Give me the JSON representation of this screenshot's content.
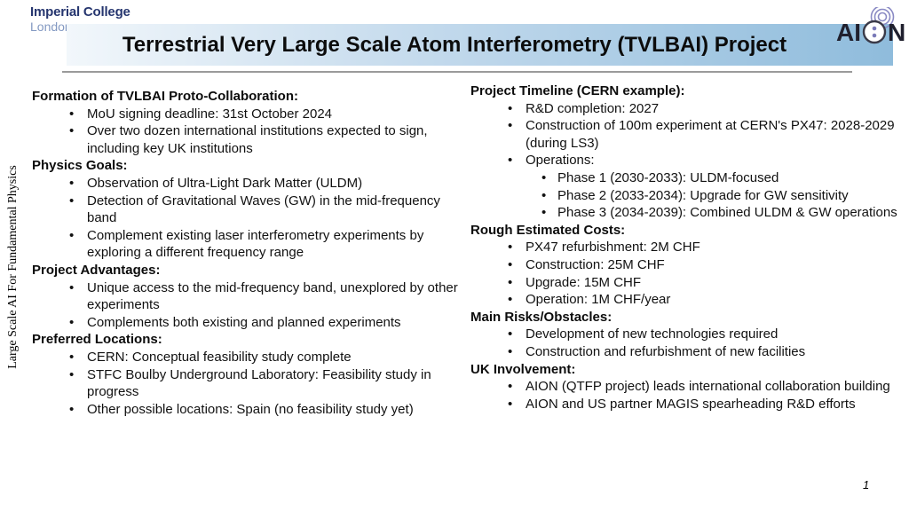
{
  "slide": {
    "title": "Terrestrial Very Large Scale Atom Interferometry (TVLBAI) Project",
    "side_label": "Large Scale AI For Fundamental Physics",
    "page_number": "1"
  },
  "logos": {
    "imperial": {
      "line1": "Imperial College",
      "line2": "London"
    },
    "aion": {
      "text_before": "AI",
      "text_after": "N"
    }
  },
  "colors": {
    "title_band_start": "#f2f7fb",
    "title_band_end": "#8fbcdc",
    "imperial_navy": "#26366f",
    "imperial_light_blue": "#8399c2",
    "aion_purple": "#8a8ac4",
    "separator_gray": "#9a9a9a",
    "body_text": "#111111"
  },
  "columns": {
    "left": {
      "sections": [
        {
          "heading": "Formation of TVLBAI Proto-Collaboration:",
          "items": [
            {
              "level": 1,
              "text": "MoU signing deadline: 31st October 2024"
            },
            {
              "level": 1,
              "text": "Over two dozen international institutions expected to sign, including key UK institutions"
            }
          ]
        },
        {
          "heading": "Physics Goals:",
          "items": [
            {
              "level": 1,
              "text": "Observation of Ultra-Light Dark Matter (ULDM)"
            },
            {
              "level": 1,
              "text": "Detection of Gravitational Waves (GW) in the mid-frequency band"
            },
            {
              "level": 1,
              "text": "Complement existing laser interferometry experiments by exploring a different frequency range"
            }
          ]
        },
        {
          "heading": "Project Advantages:",
          "items": [
            {
              "level": 1,
              "text": "Unique access to the mid-frequency band, unexplored by other experiments"
            },
            {
              "level": 1,
              "text": "Complements both existing and planned experiments"
            }
          ]
        },
        {
          "heading": "Preferred Locations:",
          "items": [
            {
              "level": 1,
              "text": "CERN: Conceptual feasibility study complete"
            },
            {
              "level": 1,
              "text": "STFC Boulby Underground Laboratory: Feasibility study in progress"
            },
            {
              "level": 1,
              "text": "Other possible locations: Spain (no feasibility study yet)"
            }
          ]
        }
      ]
    },
    "right": {
      "sections": [
        {
          "heading": "Project Timeline (CERN example):",
          "items": [
            {
              "level": 1,
              "text": "R&D completion: 2027"
            },
            {
              "level": 1,
              "text": "Construction of 100m experiment at CERN's PX47: 2028-2029 (during LS3)"
            },
            {
              "level": 1,
              "text": "Operations:"
            },
            {
              "level": 2,
              "text": "Phase 1 (2030-2033): ULDM-focused"
            },
            {
              "level": 2,
              "text": "Phase 2 (2033-2034): Upgrade for GW sensitivity"
            },
            {
              "level": 2,
              "text": "Phase 3 (2034-2039): Combined ULDM & GW operations"
            }
          ]
        },
        {
          "heading": "Rough Estimated Costs:",
          "items": [
            {
              "level": 1,
              "text": "PX47 refurbishment: 2M CHF"
            },
            {
              "level": 1,
              "text": "Construction: 25M CHF"
            },
            {
              "level": 1,
              "text": "Upgrade: 15M CHF"
            },
            {
              "level": 1,
              "text": "Operation: 1M CHF/year"
            }
          ]
        },
        {
          "heading": "Main Risks/Obstacles:",
          "items": [
            {
              "level": 1,
              "text": "Development of new technologies required"
            },
            {
              "level": 1,
              "text": "Construction and refurbishment of new facilities"
            }
          ]
        },
        {
          "heading": "UK Involvement:",
          "items": [
            {
              "level": 1,
              "text": "AION (QTFP project) leads international collaboration building"
            },
            {
              "level": 1,
              "text": "AION and US partner MAGIS spearheading R&D efforts"
            }
          ]
        }
      ]
    }
  }
}
